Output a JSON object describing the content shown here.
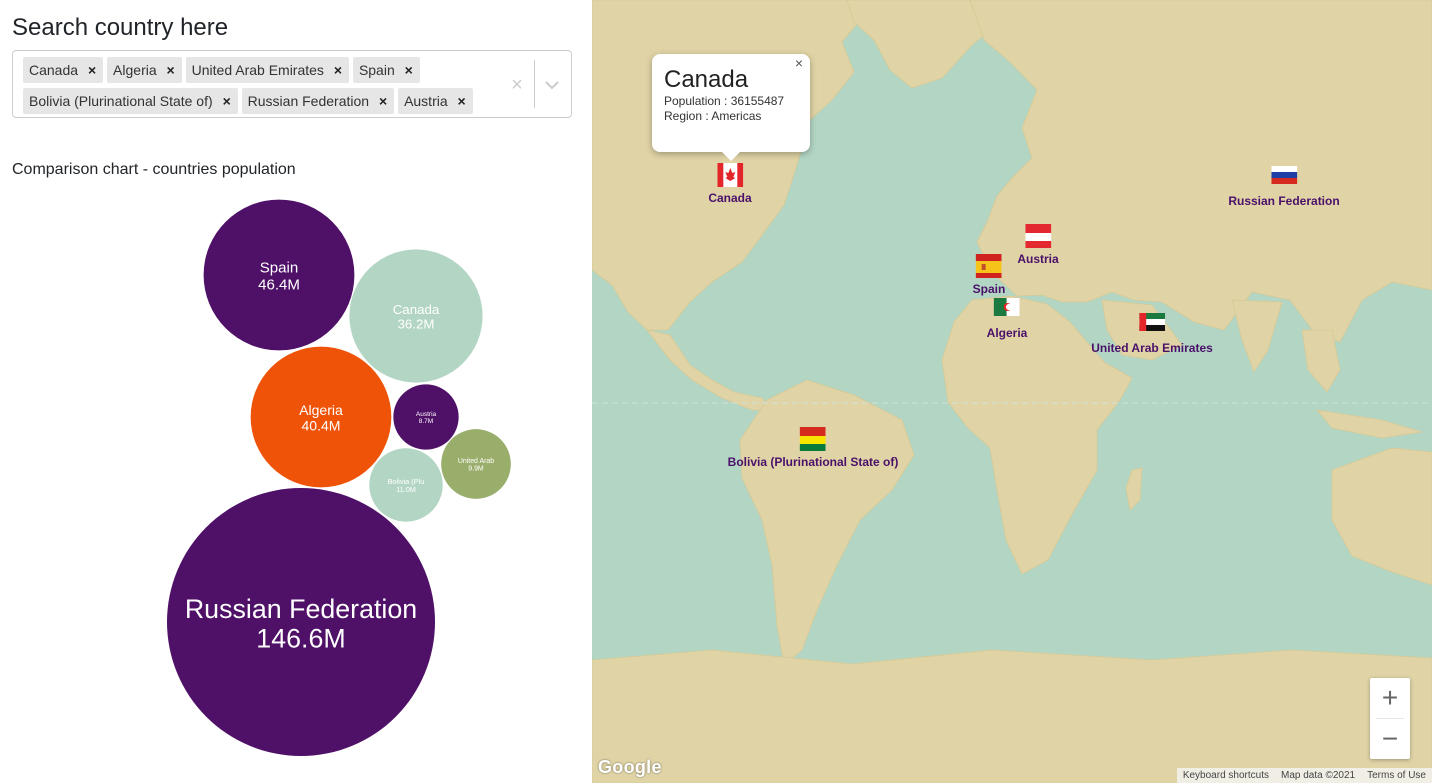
{
  "search": {
    "title": "Search country here",
    "selected": [
      {
        "label": "Canada"
      },
      {
        "label": "Algeria"
      },
      {
        "label": "United Arab Emirates"
      },
      {
        "label": "Spain"
      },
      {
        "label": "Bolivia (Plurinational State of)"
      },
      {
        "label": "Russian Federation"
      },
      {
        "label": "Austria"
      }
    ],
    "remove_glyph": "×",
    "clear_glyph": "×"
  },
  "chart_data": {
    "type": "bubble",
    "title": "Comparison chart - countries population",
    "bubbles": [
      {
        "name": "Spain",
        "label": "Spain",
        "value_label": "46.4M",
        "value": 46.4,
        "color": "#4f1068",
        "text_color": "#ffffff"
      },
      {
        "name": "Canada",
        "label": "Canada",
        "value_label": "36.2M",
        "value": 36.2,
        "color": "#b3d6c4",
        "text_color": "#ffffff"
      },
      {
        "name": "Algeria",
        "label": "Algeria",
        "value_label": "40.4M",
        "value": 40.4,
        "color": "#ee5307",
        "text_color": "#ffffff"
      },
      {
        "name": "Austria",
        "label": "Austria",
        "value_label": "8.7M",
        "value": 8.7,
        "color": "#4f1068",
        "text_color": "#ffffff"
      },
      {
        "name": "United Arab Emirates",
        "label": "United Arab",
        "value_label": "9.9M",
        "value": 9.9,
        "color": "#9aae6b",
        "text_color": "#ffffff"
      },
      {
        "name": "Bolivia (Plurinational State of)",
        "label": "Bolivia (Plu",
        "value_label": "11.0M",
        "value": 11.0,
        "color": "#b3d6c4",
        "text_color": "#ffffff"
      },
      {
        "name": "Russian Federation",
        "label": "Russian Federation",
        "value_label": "146.6M",
        "value": 146.6,
        "color": "#4f1068",
        "text_color": "#ffffff"
      }
    ]
  },
  "map": {
    "popup": {
      "title": "Canada",
      "population": "Population : 36155487",
      "region": "Region : Americas",
      "close_glyph": "×"
    },
    "markers": [
      {
        "name": "Canada",
        "flag": "canada"
      },
      {
        "name": "Russian Federation",
        "flag": "russia"
      },
      {
        "name": "Austria",
        "flag": "austria"
      },
      {
        "name": "Spain",
        "flag": "spain"
      },
      {
        "name": "Algeria",
        "flag": "algeria"
      },
      {
        "name": "United Arab Emirates",
        "flag": "uae"
      },
      {
        "name": "Bolivia (Plurinational State of)",
        "flag": "bolivia"
      }
    ],
    "zoom_in": "+",
    "zoom_out": "−",
    "logo": "Google",
    "attribution": {
      "shortcuts": "Keyboard shortcuts",
      "data": "Map data ©2021",
      "terms": "Terms of Use"
    },
    "colors": {
      "water": "#b3d6c4",
      "land": "#e0d4a6",
      "marker_label": "#4a106a"
    }
  }
}
